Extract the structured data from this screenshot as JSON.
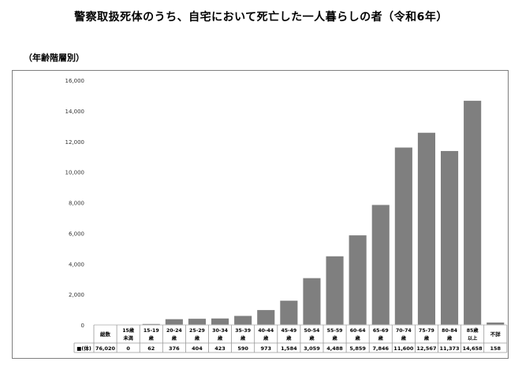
{
  "title": "警察取扱死体のうち、自宅において死亡した一人暮らしの者（令和6年）",
  "subtitle": "（年齢階層別）",
  "chart_data": {
    "type": "bar",
    "title": "警察取扱死体のうち、自宅において死亡した一人暮らしの者（令和6年）",
    "subtitle": "（年齢階層別）",
    "row_header": "■(体)",
    "categories": [
      [
        "総数"
      ],
      [
        "15歳",
        "未満"
      ],
      [
        "15-19",
        "歳"
      ],
      [
        "20-24",
        "歳"
      ],
      [
        "25-29",
        "歳"
      ],
      [
        "30-34",
        "歳"
      ],
      [
        "35-39",
        "歳"
      ],
      [
        "40-44",
        "歳"
      ],
      [
        "45-49",
        "歳"
      ],
      [
        "50-54",
        "歳"
      ],
      [
        "55-59",
        "歳"
      ],
      [
        "60-64",
        "歳"
      ],
      [
        "65-69",
        "歳"
      ],
      [
        "70-74",
        "歳"
      ],
      [
        "75-79",
        "歳"
      ],
      [
        "80-84",
        "歳"
      ],
      [
        "85歳",
        "以上"
      ],
      [
        "不詳"
      ]
    ],
    "values": [
      76020,
      0,
      62,
      376,
      404,
      423,
      590,
      973,
      1584,
      3059,
      4488,
      5859,
      7846,
      11600,
      12567,
      11373,
      14658,
      158
    ],
    "value_labels": [
      "76,020",
      "0",
      "62",
      "376",
      "404",
      "423",
      "590",
      "973",
      "1,584",
      "3,059",
      "4,488",
      "5,859",
      "7,846",
      "11,600",
      "12,567",
      "11,373",
      "14,658",
      "158"
    ],
    "plotted_from_index": 1,
    "ylim": [
      0,
      16000
    ],
    "yticks": [
      0,
      2000,
      4000,
      6000,
      8000,
      10000,
      12000,
      14000,
      16000
    ],
    "ytick_labels": [
      "0",
      "2,000",
      "4,000",
      "6,000",
      "8,000",
      "10,000",
      "12,000",
      "14,000",
      "16,000"
    ],
    "grid": false,
    "bar_color": "#7f7f7f",
    "axis_color": "#bfbfbf"
  }
}
